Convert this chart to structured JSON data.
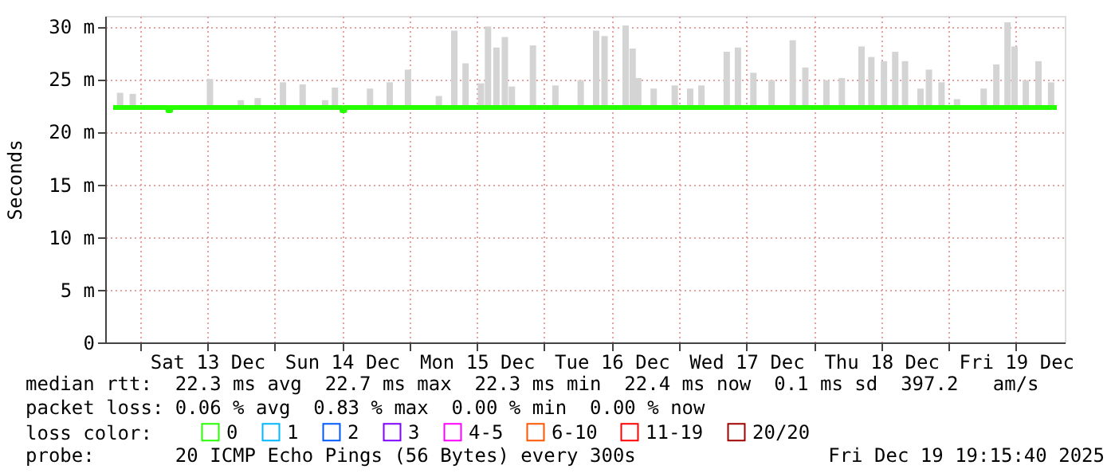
{
  "chart_data": {
    "type": "bar",
    "ylabel": "Seconds",
    "legend_title": "loss color:",
    "legend": "bottom left",
    "grid": true,
    "xlim": [
      "2025-12-12T19:16",
      "2025-12-19T19:16"
    ],
    "xticks": [
      {
        "value": "2025-12-13T00:00",
        "label": null
      },
      {
        "value": "2025-12-13T12:00",
        "label": "Sat 13 Dec"
      },
      {
        "value": "2025-12-14T00:00",
        "label": null
      },
      {
        "value": "2025-12-14T12:00",
        "label": "Sun 14 Dec"
      },
      {
        "value": "2025-12-15T00:00",
        "label": null
      },
      {
        "value": "2025-12-15T12:00",
        "label": "Mon 15 Dec"
      },
      {
        "value": "2025-12-16T00:00",
        "label": null
      },
      {
        "value": "2025-12-16T12:00",
        "label": "Tue 16 Dec"
      },
      {
        "value": "2025-12-17T00:00",
        "label": null
      },
      {
        "value": "2025-12-17T12:00",
        "label": "Wed 17 Dec"
      },
      {
        "value": "2025-12-18T00:00",
        "label": null
      },
      {
        "value": "2025-12-18T12:00",
        "label": "Thu 18 Dec"
      },
      {
        "value": "2025-12-19T00:00",
        "label": null
      },
      {
        "value": "2025-12-19T12:00",
        "label": "Fri 19 Dec"
      }
    ],
    "ylim": [
      0,
      31
    ],
    "yticks": [
      0,
      {
        "value": 5,
        "label": "5 m"
      },
      {
        "value": 10,
        "label": "10 m"
      },
      {
        "value": 15,
        "label": "15 m"
      },
      {
        "value": 20,
        "label": "20 m"
      },
      {
        "value": 25,
        "label": "25 m"
      },
      {
        "value": 30,
        "label": "30 m"
      }
    ],
    "series": [
      {
        "color": "#d4d4d4",
        "x": [
          "2025-12-12T20:30",
          "2025-12-12T22:45",
          "2025-12-13T12:30",
          "2025-12-13T18:00",
          "2025-12-13T21:00",
          "2025-12-14T01:30",
          "2025-12-14T05:00",
          "2025-12-14T09:00",
          "2025-12-14T10:45",
          "2025-12-14T17:00",
          "2025-12-14T20:30",
          "2025-12-14T23:45",
          "2025-12-15T05:15",
          "2025-12-15T08:00",
          "2025-12-15T10:00",
          "2025-12-15T12:45",
          "2025-12-15T14:00",
          "2025-12-15T15:30",
          "2025-12-15T17:00",
          "2025-12-15T18:15",
          "2025-12-15T22:00",
          "2025-12-16T02:00",
          "2025-12-16T06:30",
          "2025-12-16T09:15",
          "2025-12-16T10:45",
          "2025-12-16T14:30",
          "2025-12-16T15:45",
          "2025-12-16T16:45",
          "2025-12-16T19:30",
          "2025-12-16T23:15",
          "2025-12-17T02:00",
          "2025-12-17T04:00",
          "2025-12-17T08:30",
          "2025-12-17T10:30",
          "2025-12-17T13:15",
          "2025-12-17T16:30",
          "2025-12-17T20:15",
          "2025-12-17T22:30",
          "2025-12-18T02:15",
          "2025-12-18T05:00",
          "2025-12-18T08:30",
          "2025-12-18T10:15",
          "2025-12-18T12:30",
          "2025-12-18T14:30",
          "2025-12-18T16:15",
          "2025-12-18T19:00",
          "2025-12-18T20:30",
          "2025-12-18T22:45",
          "2025-12-19T01:30",
          "2025-12-19T06:15",
          "2025-12-19T08:30",
          "2025-12-19T10:30",
          "2025-12-19T11:45",
          "2025-12-19T13:45",
          "2025-12-19T16:00",
          "2025-12-19T18:15"
        ],
        "base": [
          22.2,
          22.2,
          22.2,
          22.2,
          22.2,
          22.2,
          22.2,
          22.2,
          22.2,
          22.2,
          22.2,
          22.2,
          22.2,
          22.2,
          22.2,
          22.2,
          22.2,
          22.2,
          22.2,
          22.2,
          22.2,
          22.2,
          22.2,
          22.2,
          22.2,
          22.2,
          22.2,
          22.2,
          22.2,
          22.2,
          22.2,
          22.2,
          22.2,
          22.2,
          22.2,
          22.2,
          22.2,
          22.2,
          22.2,
          22.2,
          22.2,
          22.2,
          22.2,
          22.2,
          22.2,
          22.2,
          22.2,
          22.2,
          22.2,
          22.2,
          22.2,
          22.2,
          22.2,
          22.2,
          22.2,
          22.2
        ],
        "values": [
          1.5,
          1.4,
          2.8,
          0.8,
          1.0,
          2.5,
          2.3,
          0.8,
          2.0,
          1.9,
          2.5,
          3.7,
          1.2,
          7.4,
          4.3,
          2.4,
          7.8,
          5.8,
          6.8,
          2.1,
          6.0,
          2.2,
          2.7,
          7.4,
          6.9,
          7.9,
          5.7,
          2.9,
          1.9,
          2.2,
          1.9,
          2.2,
          5.4,
          5.8,
          3.4,
          2.7,
          6.5,
          3.9,
          2.7,
          2.9,
          5.9,
          4.9,
          4.5,
          5.4,
          4.5,
          1.9,
          3.7,
          2.5,
          0.9,
          1.9,
          4.2,
          8.2,
          5.9,
          2.7,
          4.5,
          2.5
        ]
      },
      {
        "type": "line",
        "color": "#26ff00",
        "x": [
          "2025-12-12T19:16",
          "2025-12-13T04:30",
          "2025-12-13T05:00",
          "2025-12-13T05:30",
          "2025-12-14T11:30",
          "2025-12-14T12:00",
          "2025-12-14T12:30",
          "2025-12-19T19:16"
        ],
        "values": [
          22.3,
          22.3,
          22.0,
          22.3,
          22.3,
          22.0,
          22.3,
          22.3
        ]
      },
      {
        "type": "line",
        "name": "0",
        "color": "#26ff00"
      },
      {
        "type": "line",
        "name": "1",
        "color": "#00b8ff"
      },
      {
        "type": "line",
        "name": "2",
        "color": "#0059ff"
      },
      {
        "type": "line",
        "name": "3",
        "color": "#7e00ff"
      },
      {
        "type": "line",
        "name": "4-5",
        "color": "#ff00fe"
      },
      {
        "type": "line",
        "name": "6-10",
        "color": "#ff5500"
      },
      {
        "type": "line",
        "name": "11-19",
        "color": "#ff0000"
      },
      {
        "type": "line",
        "name": "20/20",
        "color": "#a10000"
      }
    ],
    "annotations": [
      "median rtt:  22.3 ms avg  22.7 ms max  22.3 ms min  22.4 ms now  0.1 ms sd  397.2   am/s",
      "packet loss: 0.06 % avg  0.83 % max  0.00 % min  0.00 % now",
      "probe:       20 ICMP Echo Pings (56 Bytes) every 300s",
      "Fri Dec 19 19:15:40 2025"
    ]
  }
}
